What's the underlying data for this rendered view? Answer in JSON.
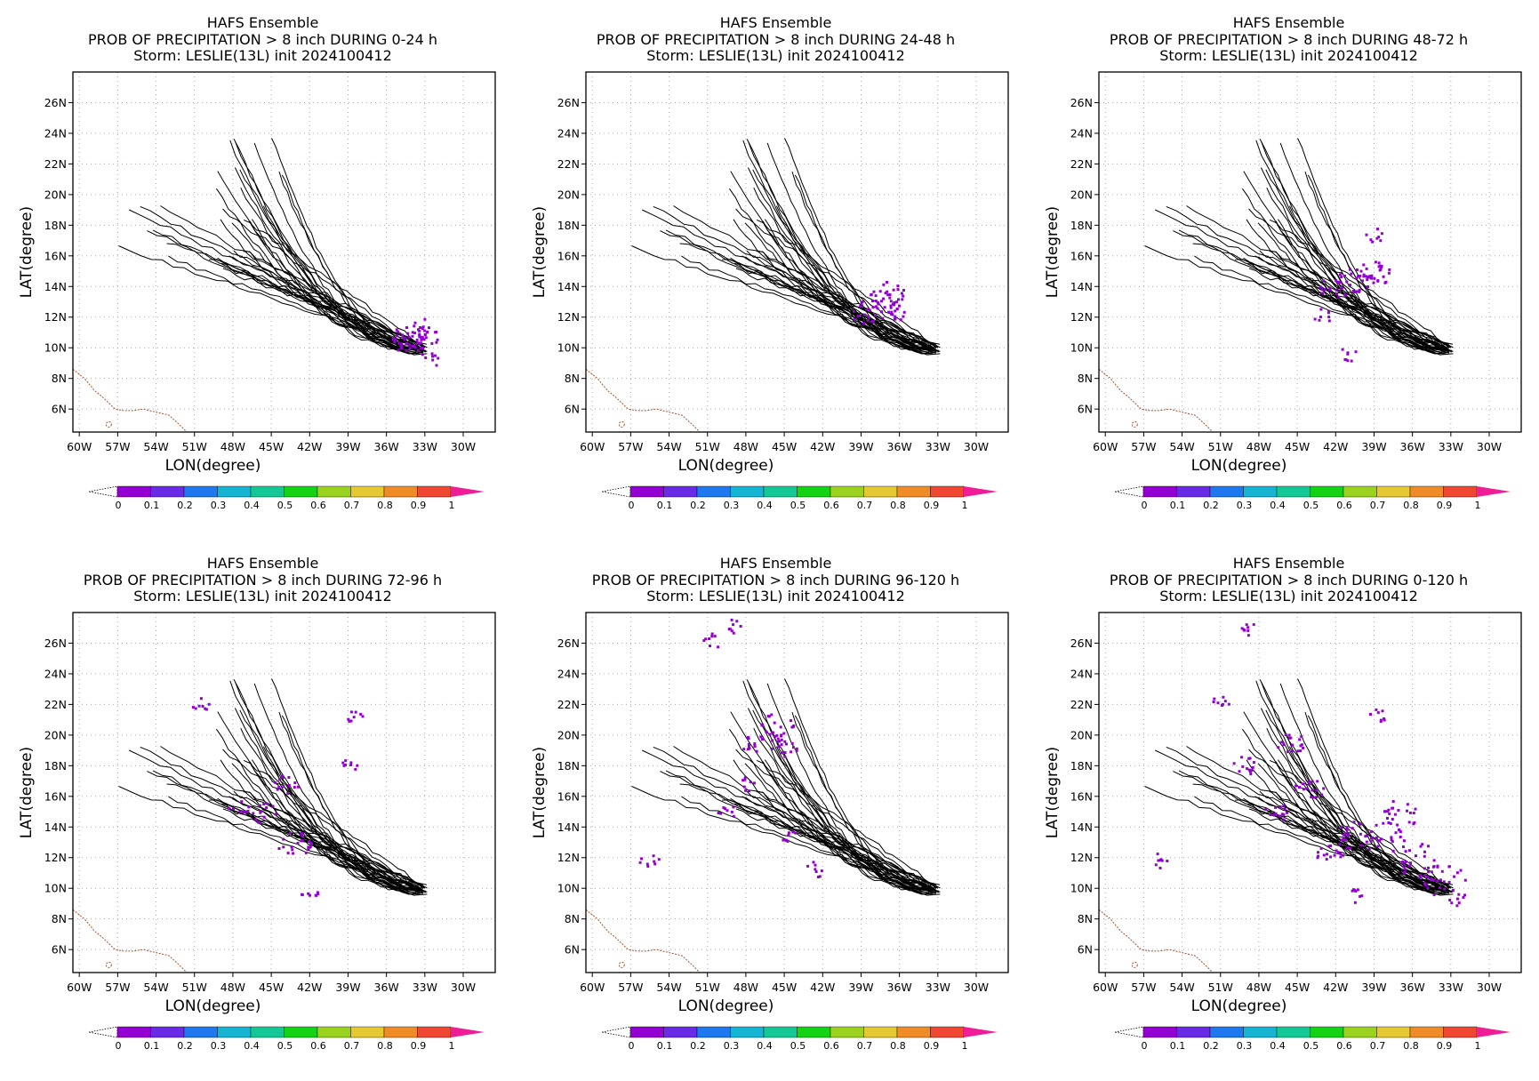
{
  "figure": {
    "colorbar": {
      "colors": [
        "#9400d3",
        "#6a2be6",
        "#1e78f0",
        "#14b4d2",
        "#14c896",
        "#14d214",
        "#9ad21e",
        "#e6c832",
        "#f08c28",
        "#f04632"
      ],
      "tip_color": "#f01e96",
      "low_color": "#ffffff",
      "labels": [
        "0",
        "0.1",
        "0.2",
        "0.3",
        "0.4",
        "0.5",
        "0.6",
        "0.7",
        "0.8",
        "0.9",
        "1"
      ]
    },
    "map_colors": {
      "coast": "#a0522d",
      "track": "#000000",
      "prob": "#9400d3",
      "grid": "#aaaaaa"
    }
  },
  "chart_data": [
    {
      "type": "heatmap",
      "title": "HAFS Ensemble",
      "subtitle": "PROB OF PRECIPITATION > 8 inch DURING  0-24 h",
      "subtitle2": "Storm: LESLIE(13L) init 2024100412",
      "xlabel": "LON(degree)",
      "ylabel": "LAT(degree)",
      "xlim": [
        -60.5,
        -27.5
      ],
      "ylim": [
        4.5,
        28.0
      ],
      "xticks": [
        "60W",
        "57W",
        "54W",
        "51W",
        "48W",
        "45W",
        "42W",
        "39W",
        "36W",
        "33W",
        "30W"
      ],
      "yticks": [
        "6N",
        "8N",
        "10N",
        "12N",
        "14N",
        "16N",
        "18N",
        "20N",
        "22N",
        "24N",
        "26N"
      ],
      "grid": true,
      "prob_areas": [
        {
          "lon": -34.0,
          "lat": 10.8,
          "p": 0.05
        },
        {
          "lon": -33.4,
          "lat": 10.6,
          "p": 0.05
        },
        {
          "lon": -34.7,
          "lat": 10.3,
          "p": 0.03
        },
        {
          "lon": -33.1,
          "lat": 11.2,
          "p": 0.03
        },
        {
          "lon": -32.6,
          "lat": 9.2,
          "p": 0.02
        }
      ]
    },
    {
      "type": "heatmap",
      "title": "HAFS Ensemble",
      "subtitle": "PROB OF PRECIPITATION > 8 inch DURING 24-48 h",
      "subtitle2": "Storm: LESLIE(13L) init 2024100412",
      "xlabel": "LON(degree)",
      "ylabel": "LAT(degree)",
      "xlim": [
        -60.5,
        -27.5
      ],
      "ylim": [
        4.5,
        28.0
      ],
      "xticks": [
        "60W",
        "57W",
        "54W",
        "51W",
        "48W",
        "45W",
        "42W",
        "39W",
        "36W",
        "33W",
        "30W"
      ],
      "yticks": [
        "6N",
        "8N",
        "10N",
        "12N",
        "14N",
        "16N",
        "18N",
        "20N",
        "22N",
        "24N",
        "26N"
      ],
      "grid": true,
      "prob_areas": [
        {
          "lon": -37.5,
          "lat": 12.8,
          "p": 0.05
        },
        {
          "lon": -36.8,
          "lat": 13.5,
          "p": 0.04
        },
        {
          "lon": -38.5,
          "lat": 12.3,
          "p": 0.04
        },
        {
          "lon": -36.2,
          "lat": 12.4,
          "p": 0.03
        }
      ]
    },
    {
      "type": "heatmap",
      "title": "HAFS Ensemble",
      "subtitle": "PROB OF PRECIPITATION > 8 inch DURING 48-72 h",
      "subtitle2": "Storm: LESLIE(13L) init 2024100412",
      "xlabel": "LON(degree)",
      "ylabel": "LAT(degree)",
      "xlim": [
        -60.5,
        -27.5
      ],
      "ylim": [
        4.5,
        28.0
      ],
      "xticks": [
        "60W",
        "57W",
        "54W",
        "51W",
        "48W",
        "45W",
        "42W",
        "39W",
        "36W",
        "33W",
        "30W"
      ],
      "yticks": [
        "6N",
        "8N",
        "10N",
        "12N",
        "14N",
        "16N",
        "18N",
        "20N",
        "22N",
        "24N",
        "26N"
      ],
      "grid": true,
      "prob_areas": [
        {
          "lon": -40.5,
          "lat": 14.2,
          "p": 0.05
        },
        {
          "lon": -42.0,
          "lat": 14.0,
          "p": 0.04
        },
        {
          "lon": -39.5,
          "lat": 15.0,
          "p": 0.04
        },
        {
          "lon": -38.5,
          "lat": 14.8,
          "p": 0.03
        },
        {
          "lon": -39.0,
          "lat": 17.3,
          "p": 0.02
        },
        {
          "lon": -41.0,
          "lat": 9.5,
          "p": 0.02
        },
        {
          "lon": -43.0,
          "lat": 12.1,
          "p": 0.02
        }
      ]
    },
    {
      "type": "heatmap",
      "title": "HAFS Ensemble",
      "subtitle": "PROB OF PRECIPITATION > 8 inch DURING 72-96 h",
      "subtitle2": "Storm: LESLIE(13L) init 2024100412",
      "xlabel": "LON(degree)",
      "ylabel": "LAT(degree)",
      "xlim": [
        -60.5,
        -27.5
      ],
      "ylim": [
        4.5,
        28.0
      ],
      "xticks": [
        "60W",
        "57W",
        "54W",
        "51W",
        "48W",
        "45W",
        "42W",
        "39W",
        "36W",
        "33W",
        "30W"
      ],
      "yticks": [
        "6N",
        "8N",
        "10N",
        "12N",
        "14N",
        "16N",
        "18N",
        "20N",
        "22N",
        "24N",
        "26N"
      ],
      "grid": true,
      "prob_areas": [
        {
          "lon": -43.0,
          "lat": 12.8,
          "p": 0.05
        },
        {
          "lon": -43.8,
          "lat": 16.8,
          "p": 0.03
        },
        {
          "lon": -45.5,
          "lat": 14.9,
          "p": 0.03
        },
        {
          "lon": -47.5,
          "lat": 15.2,
          "p": 0.02
        },
        {
          "lon": -38.6,
          "lat": 21.2,
          "p": 0.02
        },
        {
          "lon": -38.8,
          "lat": 18.0,
          "p": 0.02
        },
        {
          "lon": -42.0,
          "lat": 9.5,
          "p": 0.02
        },
        {
          "lon": -50.5,
          "lat": 22.0,
          "p": 0.02
        }
      ]
    },
    {
      "type": "heatmap",
      "title": "HAFS Ensemble",
      "subtitle": "PROB OF PRECIPITATION > 8 inch DURING 96-120 h",
      "subtitle2": "Storm: LESLIE(13L) init 2024100412",
      "xlabel": "LON(degree)",
      "ylabel": "LAT(degree)",
      "xlim": [
        -60.5,
        -27.5
      ],
      "ylim": [
        4.5,
        28.0
      ],
      "xticks": [
        "60W",
        "57W",
        "54W",
        "51W",
        "48W",
        "45W",
        "42W",
        "39W",
        "36W",
        "33W",
        "30W"
      ],
      "yticks": [
        "6N",
        "8N",
        "10N",
        "12N",
        "14N",
        "16N",
        "18N",
        "20N",
        "22N",
        "24N",
        "26N"
      ],
      "grid": true,
      "prob_areas": [
        {
          "lon": -45.5,
          "lat": 20.5,
          "p": 0.05
        },
        {
          "lon": -45.0,
          "lat": 19.3,
          "p": 0.04
        },
        {
          "lon": -47.5,
          "lat": 19.5,
          "p": 0.03
        },
        {
          "lon": -48.0,
          "lat": 16.8,
          "p": 0.02
        },
        {
          "lon": -49.5,
          "lat": 15.0,
          "p": 0.02
        },
        {
          "lon": -49.0,
          "lat": 27.0,
          "p": 0.02
        },
        {
          "lon": -50.5,
          "lat": 26.1,
          "p": 0.02
        },
        {
          "lon": -55.5,
          "lat": 11.8,
          "p": 0.02
        },
        {
          "lon": -42.5,
          "lat": 11.2,
          "p": 0.02
        },
        {
          "lon": -44.8,
          "lat": 13.5,
          "p": 0.02
        }
      ]
    },
    {
      "type": "heatmap",
      "title": "HAFS Ensemble",
      "subtitle": "PROB OF PRECIPITATION > 8 inch DURING 0-120 h",
      "subtitle2": "Storm: LESLIE(13L) init 2024100412",
      "xlabel": "LON(degree)",
      "ylabel": "LAT(degree)",
      "xlim": [
        -60.5,
        -27.5
      ],
      "ylim": [
        4.5,
        28.0
      ],
      "xticks": [
        "60W",
        "57W",
        "54W",
        "51W",
        "48W",
        "45W",
        "42W",
        "39W",
        "36W",
        "33W",
        "30W"
      ],
      "yticks": [
        "6N",
        "8N",
        "10N",
        "12N",
        "14N",
        "16N",
        "18N",
        "20N",
        "22N",
        "24N",
        "26N"
      ],
      "grid": true,
      "prob_areas": [
        {
          "lon": -38.0,
          "lat": 13.2,
          "p": 0.06
        },
        {
          "lon": -35.5,
          "lat": 11.8,
          "p": 0.06
        },
        {
          "lon": -33.5,
          "lat": 10.5,
          "p": 0.06
        },
        {
          "lon": -40.5,
          "lat": 13.5,
          "p": 0.05
        },
        {
          "lon": -37.0,
          "lat": 14.8,
          "p": 0.05
        },
        {
          "lon": -42.5,
          "lat": 12.5,
          "p": 0.04
        },
        {
          "lon": -45.5,
          "lat": 19.5,
          "p": 0.04
        },
        {
          "lon": -44.0,
          "lat": 16.5,
          "p": 0.04
        },
        {
          "lon": -46.5,
          "lat": 15.0,
          "p": 0.03
        },
        {
          "lon": -49.0,
          "lat": 18.0,
          "p": 0.03
        },
        {
          "lon": -40.5,
          "lat": 9.5,
          "p": 0.02
        },
        {
          "lon": -38.6,
          "lat": 21.2,
          "p": 0.02
        },
        {
          "lon": -49.0,
          "lat": 27.0,
          "p": 0.02
        },
        {
          "lon": -32.5,
          "lat": 9.2,
          "p": 0.02
        },
        {
          "lon": -55.5,
          "lat": 11.8,
          "p": 0.02
        },
        {
          "lon": -51.0,
          "lat": 22.0,
          "p": 0.02
        }
      ]
    }
  ]
}
